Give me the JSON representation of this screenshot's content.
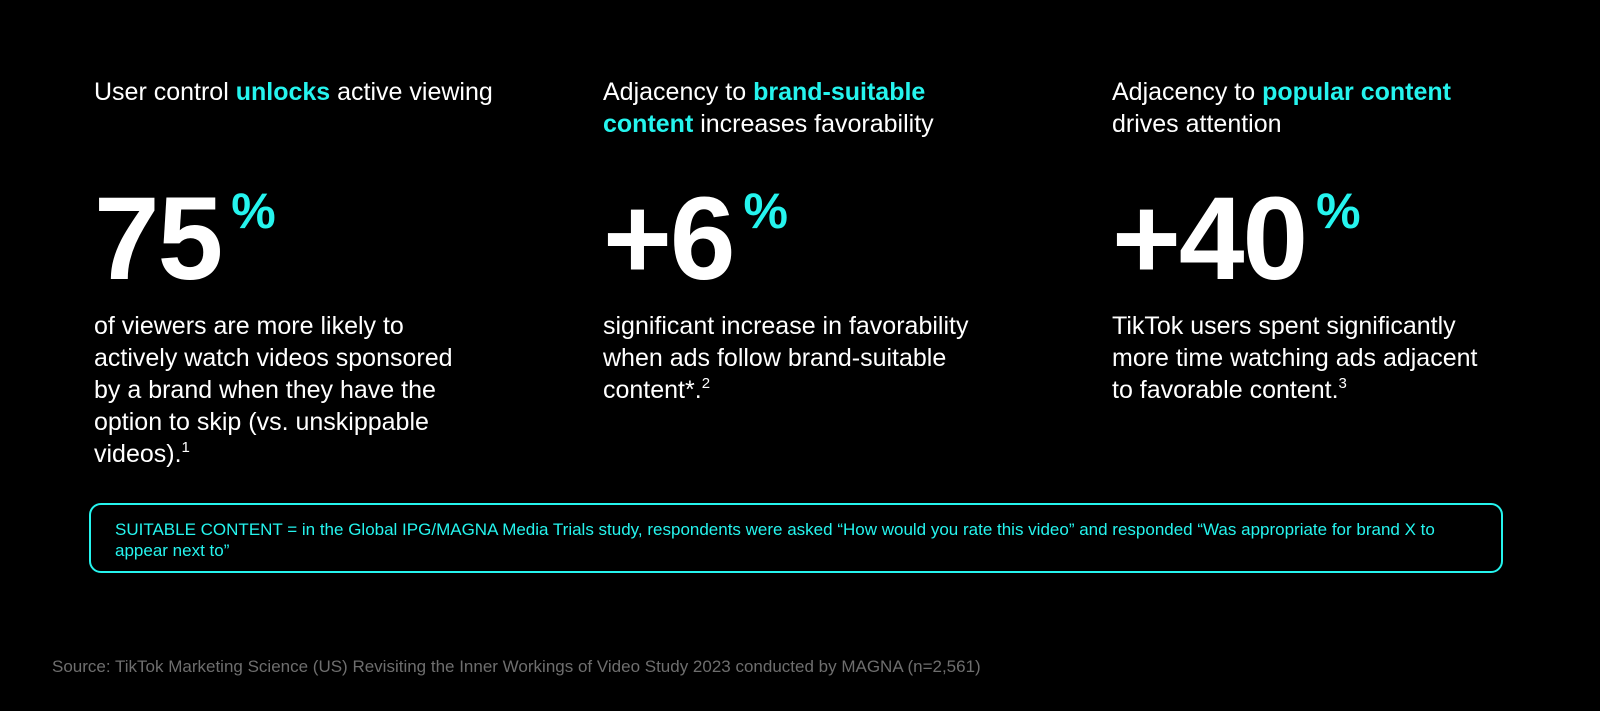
{
  "stats": [
    {
      "headline_pre": "User control ",
      "headline_highlight": "unlocks",
      "headline_post": " active viewing",
      "number": "75",
      "suffix": "%",
      "description": "of viewers are more likely to actively watch videos sponsored by a brand when they have the option to skip (vs. unskippable videos).",
      "footnote": "1"
    },
    {
      "headline_pre": "Adjacency to ",
      "headline_highlight": "brand-suitable content",
      "headline_post": " increases favorability",
      "number": "+6",
      "suffix": "%",
      "description": "significant increase in favorability when ads follow brand-suitable content*.",
      "footnote": "2"
    },
    {
      "headline_pre": "Adjacency to ",
      "headline_highlight": "popular content",
      "headline_post": " drives attention",
      "number": "+40",
      "suffix": "%",
      "description": "TikTok users spent significantly more time watching ads adjacent to favorable content.",
      "footnote": "3"
    }
  ],
  "note": "SUITABLE CONTENT = in the Global IPG/MAGNA Media Trials study, respondents were asked “How would you rate this video” and responded “Was appropriate for brand X to appear next to”",
  "source": "Source: TikTok Marketing Science (US) Revisiting the Inner Workings of Video Study 2023 conducted by MAGNA (n=2,561)",
  "colors": {
    "accent": "#25F4EE",
    "background": "#000000",
    "text": "#FFFFFF",
    "muted": "#6E6E6E"
  }
}
